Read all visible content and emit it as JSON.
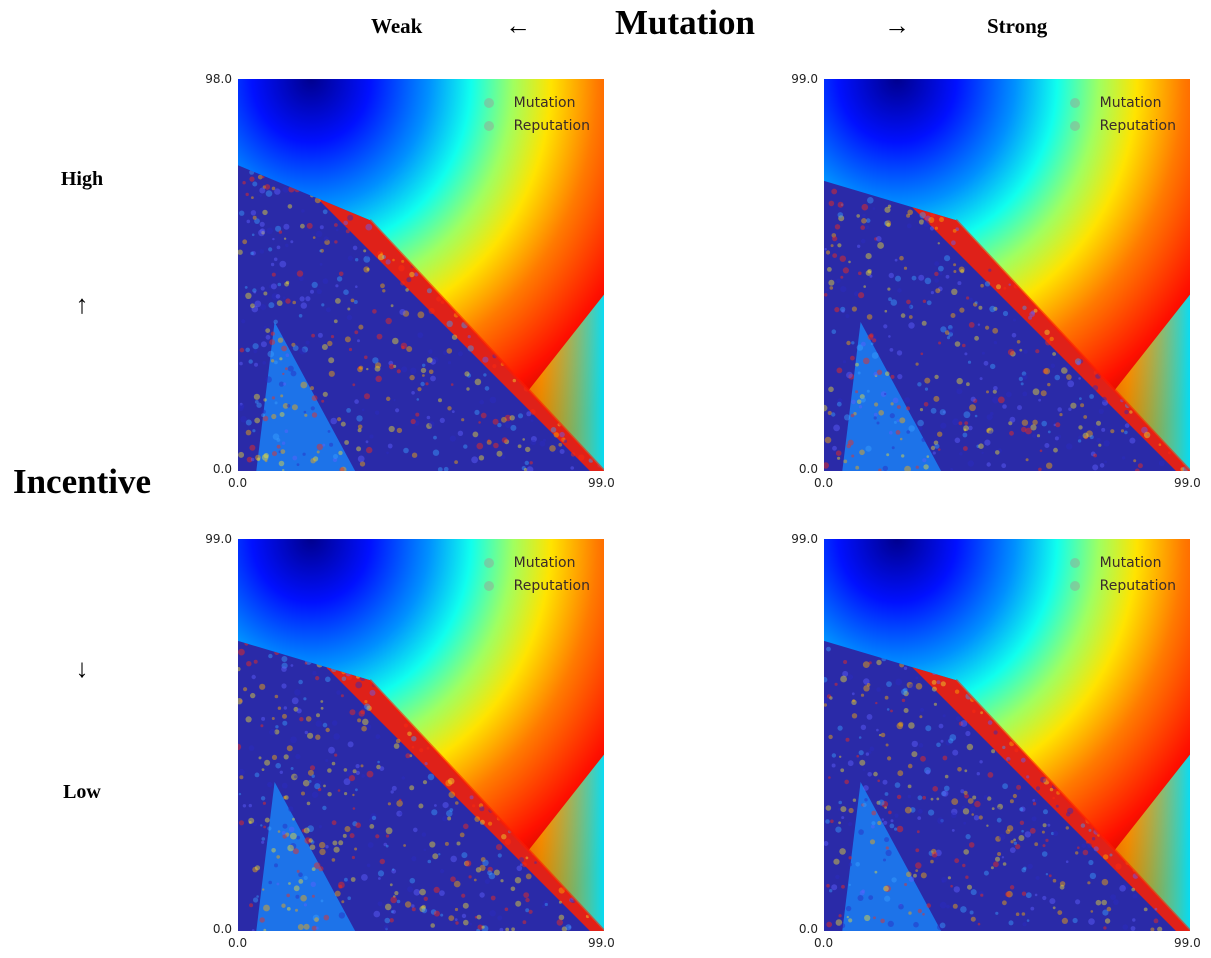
{
  "header": {
    "weak": "Weak",
    "left_arrow": "←",
    "title": "Mutation",
    "right_arrow": "→",
    "strong": "Strong"
  },
  "side": {
    "high": "High",
    "up_arrow": "↑",
    "title": "Incentive",
    "down_arrow": "↓",
    "low": "Low"
  },
  "chart_data": [
    {
      "type": "heatmap",
      "panel": "top-left",
      "xlim": [
        0.0,
        99.0
      ],
      "ylim": [
        0.0,
        98.0
      ],
      "x_tick_labels": [
        "0.0",
        "99.0"
      ],
      "y_tick_labels": [
        "0.0",
        "98.0"
      ],
      "colormap": "jet",
      "legend": [
        "Mutation",
        "Reputation"
      ],
      "legend_position": "top-right",
      "grid": false
    },
    {
      "type": "heatmap",
      "panel": "top-right",
      "xlim": [
        0.0,
        99.0
      ],
      "ylim": [
        0.0,
        99.0
      ],
      "x_tick_labels": [
        "0.0",
        "99.0"
      ],
      "y_tick_labels": [
        "0.0",
        "99.0"
      ],
      "colormap": "jet",
      "legend": [
        "Mutation",
        "Reputation"
      ],
      "legend_position": "top-right",
      "grid": false
    },
    {
      "type": "heatmap",
      "panel": "bottom-left",
      "xlim": [
        0.0,
        99.0
      ],
      "ylim": [
        0.0,
        99.0
      ],
      "x_tick_labels": [
        "0.0",
        "99.0"
      ],
      "y_tick_labels": [
        "0.0",
        "99.0"
      ],
      "colormap": "jet",
      "legend": [
        "Mutation",
        "Reputation"
      ],
      "legend_position": "top-right",
      "grid": false
    },
    {
      "type": "heatmap",
      "panel": "bottom-right",
      "xlim": [
        0.0,
        99.0
      ],
      "ylim": [
        0.0,
        99.0
      ],
      "x_tick_labels": [
        "0.0",
        "99.0"
      ],
      "y_tick_labels": [
        "0.0",
        "99.0"
      ],
      "colormap": "jet",
      "legend": [
        "Mutation",
        "Reputation"
      ],
      "legend_position": "top-right",
      "grid": false
    }
  ]
}
